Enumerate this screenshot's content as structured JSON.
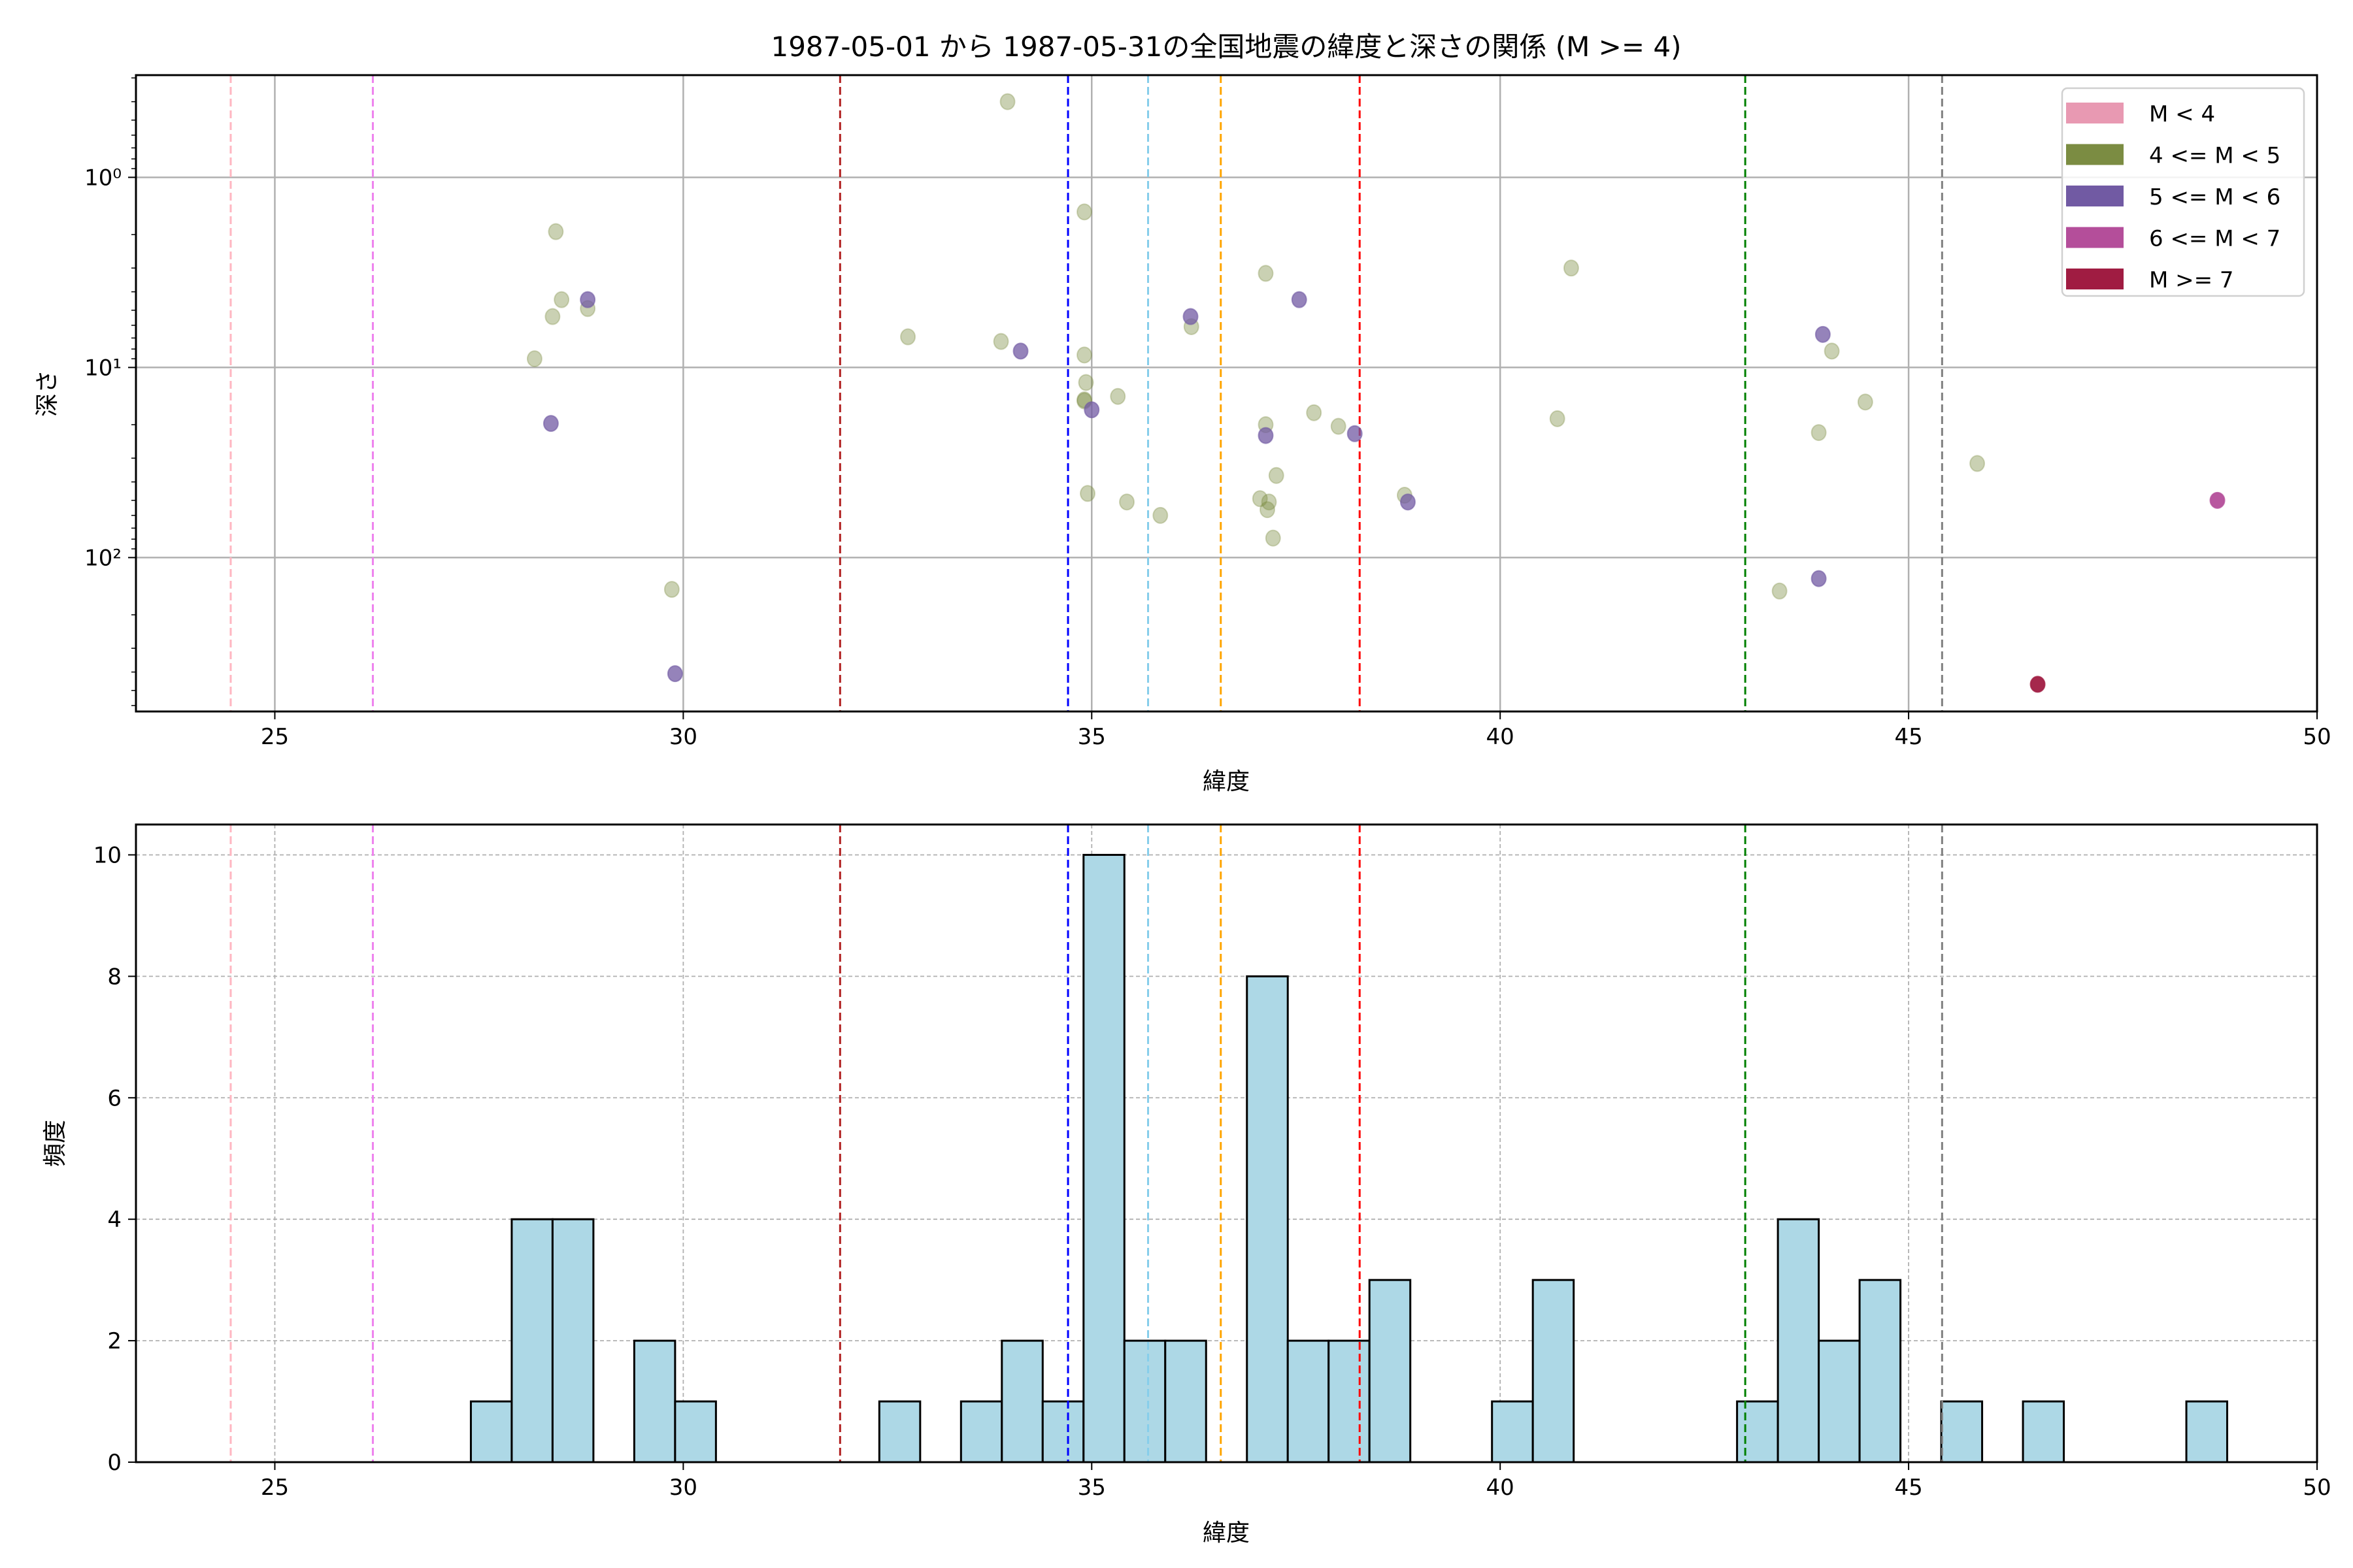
{
  "chart_data": [
    {
      "type": "scatter",
      "title": "1987-05-01 から 1987-05-31の全国地震の緯度と深さの関係 (M >= 4)",
      "xlabel": "緯度",
      "ylabel": "深さ",
      "xlim": [
        23.3,
        50
      ],
      "ylim": [
        645,
        0.29
      ],
      "yscale": "log",
      "y_inverted": true,
      "xticks": [
        25,
        30,
        35,
        40,
        45,
        50
      ],
      "xtick_labels": [
        "25",
        "30",
        "35",
        "40",
        "45",
        "50"
      ],
      "yticks": [
        1,
        10,
        100
      ],
      "ytick_labels": [
        "10⁰",
        "10¹",
        "10²"
      ],
      "grid": true,
      "legend": {
        "placement": "top-right",
        "entries": [
          {
            "label": "M < 4",
            "color": "#e899b2"
          },
          {
            "label": "4 <= M < 5",
            "color": "#7b8c42"
          },
          {
            "label": "5 <= M < 6",
            "color": "#715aa3"
          },
          {
            "label": "6 <= M < 7",
            "color": "#b44e9a"
          },
          {
            "label": "M >= 7",
            "color": "#a01c42"
          }
        ]
      },
      "vlines": [
        {
          "x": 24.46,
          "color": "#ffb6c1"
        },
        {
          "x": 26.2,
          "color": "#ee82ee"
        },
        {
          "x": 31.92,
          "color": "#b22222"
        },
        {
          "x": 34.71,
          "color": "#0000ff"
        },
        {
          "x": 35.69,
          "color": "#87ceeb"
        },
        {
          "x": 36.58,
          "color": "#ffa500"
        },
        {
          "x": 38.28,
          "color": "#ff0000"
        },
        {
          "x": 43.0,
          "color": "#008000"
        },
        {
          "x": 45.41,
          "color": "#808080"
        }
      ],
      "series": [
        {
          "name": "4 <= M < 5",
          "color": "#7b8c42",
          "points": [
            [
              33.97,
              0.4
            ],
            [
              34.91,
              1.52
            ],
            [
              28.44,
              1.93
            ],
            [
              28.51,
              4.4
            ],
            [
              28.4,
              5.4
            ],
            [
              28.83,
              4.9
            ],
            [
              28.18,
              9.0
            ],
            [
              32.75,
              6.9
            ],
            [
              33.89,
              7.3
            ],
            [
              34.91,
              8.6
            ],
            [
              34.93,
              12
            ],
            [
              34.91,
              15
            ],
            [
              35.32,
              14.2
            ],
            [
              34.91,
              14.8
            ],
            [
              34.95,
              46
            ],
            [
              35.43,
              51
            ],
            [
              35.84,
              60
            ],
            [
              29.86,
              147
            ],
            [
              37.13,
              3.2
            ],
            [
              36.22,
              6.1
            ],
            [
              37.13,
              20
            ],
            [
              37.72,
              17.3
            ],
            [
              38.02,
              20.4
            ],
            [
              37.26,
              37
            ],
            [
              37.06,
              49
            ],
            [
              37.17,
              51
            ],
            [
              37.15,
              56
            ],
            [
              37.22,
              79
            ],
            [
              38.83,
              47
            ],
            [
              40.87,
              3.0
            ],
            [
              40.7,
              18.6
            ],
            [
              44.06,
              8.2
            ],
            [
              43.9,
              22
            ],
            [
              44.47,
              15.2
            ],
            [
              45.84,
              32
            ],
            [
              43.42,
              150
            ]
          ]
        },
        {
          "name": "5 <= M < 6",
          "color": "#715aa3",
          "points": [
            [
              28.83,
              4.4
            ],
            [
              28.38,
              19.7
            ],
            [
              34.13,
              8.2
            ],
            [
              29.9,
              408
            ],
            [
              36.21,
              5.4
            ],
            [
              37.54,
              4.4
            ],
            [
              35.0,
              16.7
            ],
            [
              37.13,
              22.8
            ],
            [
              38.22,
              22.3
            ],
            [
              38.87,
              51
            ],
            [
              43.95,
              6.7
            ],
            [
              43.9,
              129
            ]
          ]
        },
        {
          "name": "6 <= M < 7",
          "color": "#b44e9a",
          "points": [
            [
              48.78,
              50
            ]
          ]
        },
        {
          "name": "M >= 7",
          "color": "#a01c42",
          "points": [
            [
              46.58,
              464
            ]
          ]
        }
      ]
    },
    {
      "type": "bar",
      "subtype": "histogram",
      "xlabel": "緯度",
      "ylabel": "頻度",
      "xlim": [
        23.3,
        50
      ],
      "ylim": [
        0,
        10.5
      ],
      "bin_width": 0.5,
      "xticks": [
        25,
        30,
        35,
        40,
        45,
        50
      ],
      "xtick_labels": [
        "25",
        "30",
        "35",
        "40",
        "45",
        "50"
      ],
      "yticks": [
        0,
        2,
        4,
        6,
        8,
        10
      ],
      "ytick_labels": [
        "0",
        "2",
        "4",
        "6",
        "8",
        "10"
      ],
      "grid": true,
      "bar_color": "#add8e6",
      "bins": [
        [
          27.4,
          1
        ],
        [
          27.9,
          4
        ],
        [
          28.4,
          4
        ],
        [
          29.4,
          2
        ],
        [
          29.9,
          1
        ],
        [
          32.4,
          1
        ],
        [
          33.4,
          1
        ],
        [
          33.9,
          2
        ],
        [
          34.4,
          1
        ],
        [
          34.9,
          10
        ],
        [
          35.4,
          2
        ],
        [
          35.9,
          2
        ],
        [
          36.9,
          8
        ],
        [
          37.4,
          2
        ],
        [
          37.9,
          2
        ],
        [
          38.4,
          3
        ],
        [
          39.9,
          1
        ],
        [
          40.4,
          3
        ],
        [
          42.9,
          1
        ],
        [
          43.4,
          4
        ],
        [
          43.9,
          2
        ],
        [
          44.4,
          3
        ],
        [
          45.4,
          1
        ],
        [
          46.4,
          1
        ],
        [
          48.4,
          1
        ]
      ],
      "vlines_same_as_above": true
    }
  ]
}
